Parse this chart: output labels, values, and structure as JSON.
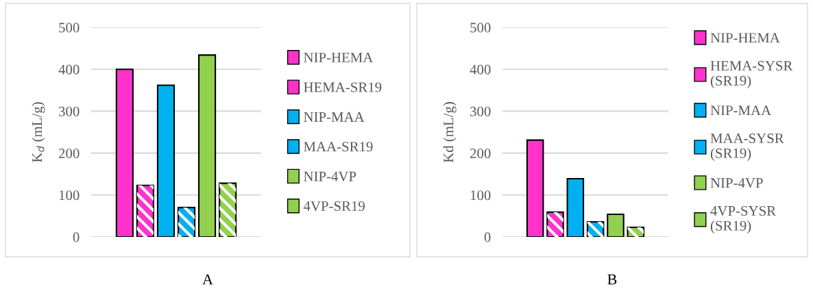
{
  "chart_data": [
    {
      "type": "bar",
      "ylabel": "K$_{d}$ (mL/g)",
      "xlabel": "A",
      "categories": [
        null
      ],
      "ylim": [
        0,
        500
      ],
      "yticks": [
        0,
        100,
        200,
        300,
        400,
        500
      ],
      "grid": "y",
      "legend": "right",
      "series": [
        {
          "name": "NIP-HEMA",
          "color": "#ff33cc",
          "values": [
            400
          ]
        },
        {
          "name": "HEMA-SR19",
          "color": "#ff33cc",
          "values": [
            123
          ]
        },
        {
          "name": "NIP-MAA",
          "color": "#00b0f0",
          "values": [
            362
          ]
        },
        {
          "name": "MAA-SR19",
          "color": "#00b0f0",
          "values": [
            70
          ]
        },
        {
          "name": "NIP-4VP",
          "color": "#92d050",
          "values": [
            434
          ]
        },
        {
          "name": "4VP-SR19",
          "color": "#92d050",
          "values": [
            128
          ]
        }
      ]
    },
    {
      "type": "bar",
      "ylabel": "Kd (mL/g)",
      "xlabel": "B",
      "categories": [
        null
      ],
      "ylim": [
        0,
        500
      ],
      "yticks": [
        0,
        100,
        200,
        300,
        400,
        500
      ],
      "grid": "y",
      "legend": "right",
      "series": [
        {
          "name": "NIP-HEMA",
          "color": "#ff33cc",
          "values": [
            231
          ]
        },
        {
          "name": "HEMA-SYSR (SR19)",
          "color": "#ff33cc",
          "values": [
            59
          ]
        },
        {
          "name": "NIP-MAA",
          "color": "#00b0f0",
          "values": [
            139
          ]
        },
        {
          "name": "MAA-SYSR (SR19)",
          "color": "#00b0f0",
          "values": [
            36
          ]
        },
        {
          "name": "NIP-4VP",
          "color": "#92d050",
          "values": [
            54
          ]
        },
        {
          "name": "4VP-SYSR (SR19)",
          "color": "#92d050",
          "values": [
            23
          ]
        }
      ]
    }
  ]
}
